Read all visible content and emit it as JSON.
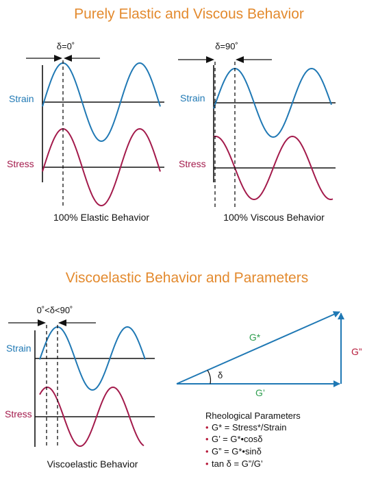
{
  "colors": {
    "title": "#e38a2e",
    "strain": "#1f78b4",
    "stress": "#a31a4b",
    "vector_blue": "#1f78b4",
    "green": "#2e9e4f",
    "red": "#b71c3c",
    "text": "#111111"
  },
  "top_section": {
    "title": "Purely Elastic and Viscous Behavior",
    "elastic": {
      "delta_label": "δ=0˚",
      "strain_label": "Strain",
      "stress_label": "Stress",
      "caption": "100% Elastic Behavior",
      "phase_shift_deg": 0
    },
    "viscous": {
      "delta_label": "δ=90˚",
      "strain_label": "Strain",
      "stress_label": "Stress",
      "caption": "100% Viscous Behavior",
      "phase_shift_deg": 90
    }
  },
  "bottom_section": {
    "title": "Viscoelastic Behavior and Parameters",
    "viscoelastic": {
      "delta_label": "0˚<δ<90˚",
      "strain_label": "Strain",
      "stress_label": "Stress",
      "caption": "Viscoelastic Behavior"
    },
    "vectors": {
      "gstar_label": "G*",
      "gprime_label": "G’",
      "gdouble_label": "G”",
      "angle_label": "δ"
    },
    "parameters": {
      "title": "Rheological Parameters",
      "bullet": "•",
      "items": [
        "G* = Stress*/Strain",
        "G’ = G*•cosδ",
        "G” = G*•sinδ",
        "tan δ = G”/G’"
      ]
    }
  }
}
